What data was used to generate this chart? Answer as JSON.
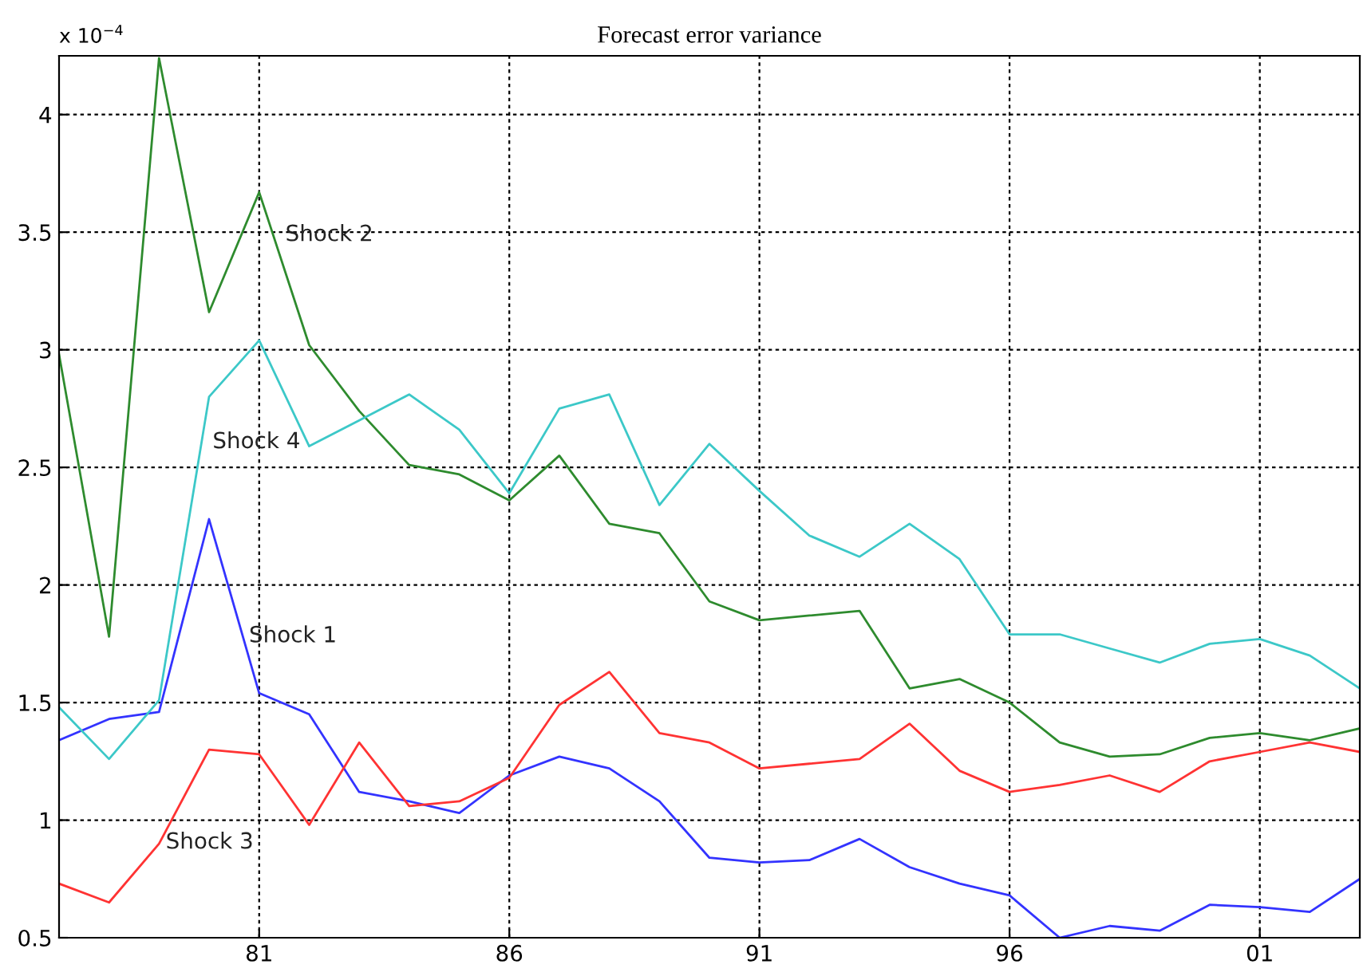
{
  "chart_data": {
    "type": "line",
    "title": "Forecast error variance",
    "x": [
      "1977",
      "1978",
      "1979",
      "1980",
      "1981",
      "1982",
      "1983",
      "1984",
      "1985",
      "1986",
      "1987",
      "1988",
      "1989",
      "1990",
      "1991",
      "1992",
      "1993",
      "1994",
      "1995",
      "1996",
      "1997",
      "1998",
      "1999",
      "2000",
      "2001",
      "2002",
      "2003"
    ],
    "series": [
      {
        "name": "Shock 1",
        "color": "#3333ff",
        "values": [
          1.34,
          1.43,
          1.46,
          2.28,
          1.54,
          1.45,
          1.12,
          1.08,
          1.03,
          1.19,
          1.27,
          1.22,
          1.08,
          0.84,
          0.82,
          0.83,
          0.92,
          0.8,
          0.73,
          0.68,
          0.5,
          0.55,
          0.53,
          0.64,
          0.63,
          0.61,
          0.75
        ]
      },
      {
        "name": "Shock 2",
        "color": "#2e8b2e",
        "values": [
          2.98,
          1.78,
          4.24,
          3.16,
          3.67,
          3.02,
          2.74,
          2.51,
          2.47,
          2.36,
          2.55,
          2.26,
          2.22,
          1.93,
          1.85,
          1.87,
          1.89,
          1.56,
          1.6,
          1.5,
          1.33,
          1.27,
          1.28,
          1.35,
          1.37,
          1.34,
          1.39
        ]
      },
      {
        "name": "Shock 3",
        "color": "#ff3333",
        "values": [
          0.73,
          0.65,
          0.9,
          1.3,
          1.28,
          0.98,
          1.33,
          1.06,
          1.08,
          1.18,
          1.49,
          1.63,
          1.37,
          1.33,
          1.22,
          1.24,
          1.26,
          1.41,
          1.21,
          1.12,
          1.15,
          1.19,
          1.12,
          1.25,
          1.29,
          1.33,
          1.29
        ]
      },
      {
        "name": "Shock 4",
        "color": "#3cc8c8",
        "values": [
          1.48,
          1.26,
          1.51,
          2.8,
          3.04,
          2.59,
          2.7,
          2.81,
          2.66,
          2.39,
          2.75,
          2.81,
          2.34,
          2.6,
          2.4,
          2.21,
          2.12,
          2.26,
          2.11,
          1.79,
          1.79,
          1.73,
          1.67,
          1.75,
          1.77,
          1.7,
          1.56
        ]
      }
    ],
    "annotations": [
      "x 10$^{−4}$"
    ],
    "xlim": [
      "1977",
      "2003"
    ],
    "xticks": [
      {
        "value": "1981",
        "label": "81"
      },
      {
        "value": "1986",
        "label": "86"
      },
      {
        "value": "1991",
        "label": "91"
      },
      {
        "value": "1996",
        "label": "96"
      },
      {
        "value": "2001",
        "label": "01"
      }
    ],
    "ylim": [
      0.5,
      4.25
    ],
    "yticks": [
      0.5,
      1,
      1.5,
      2,
      2.5,
      3,
      3.5,
      4
    ],
    "grid": true,
    "line_style": "solid",
    "marker": "none"
  }
}
